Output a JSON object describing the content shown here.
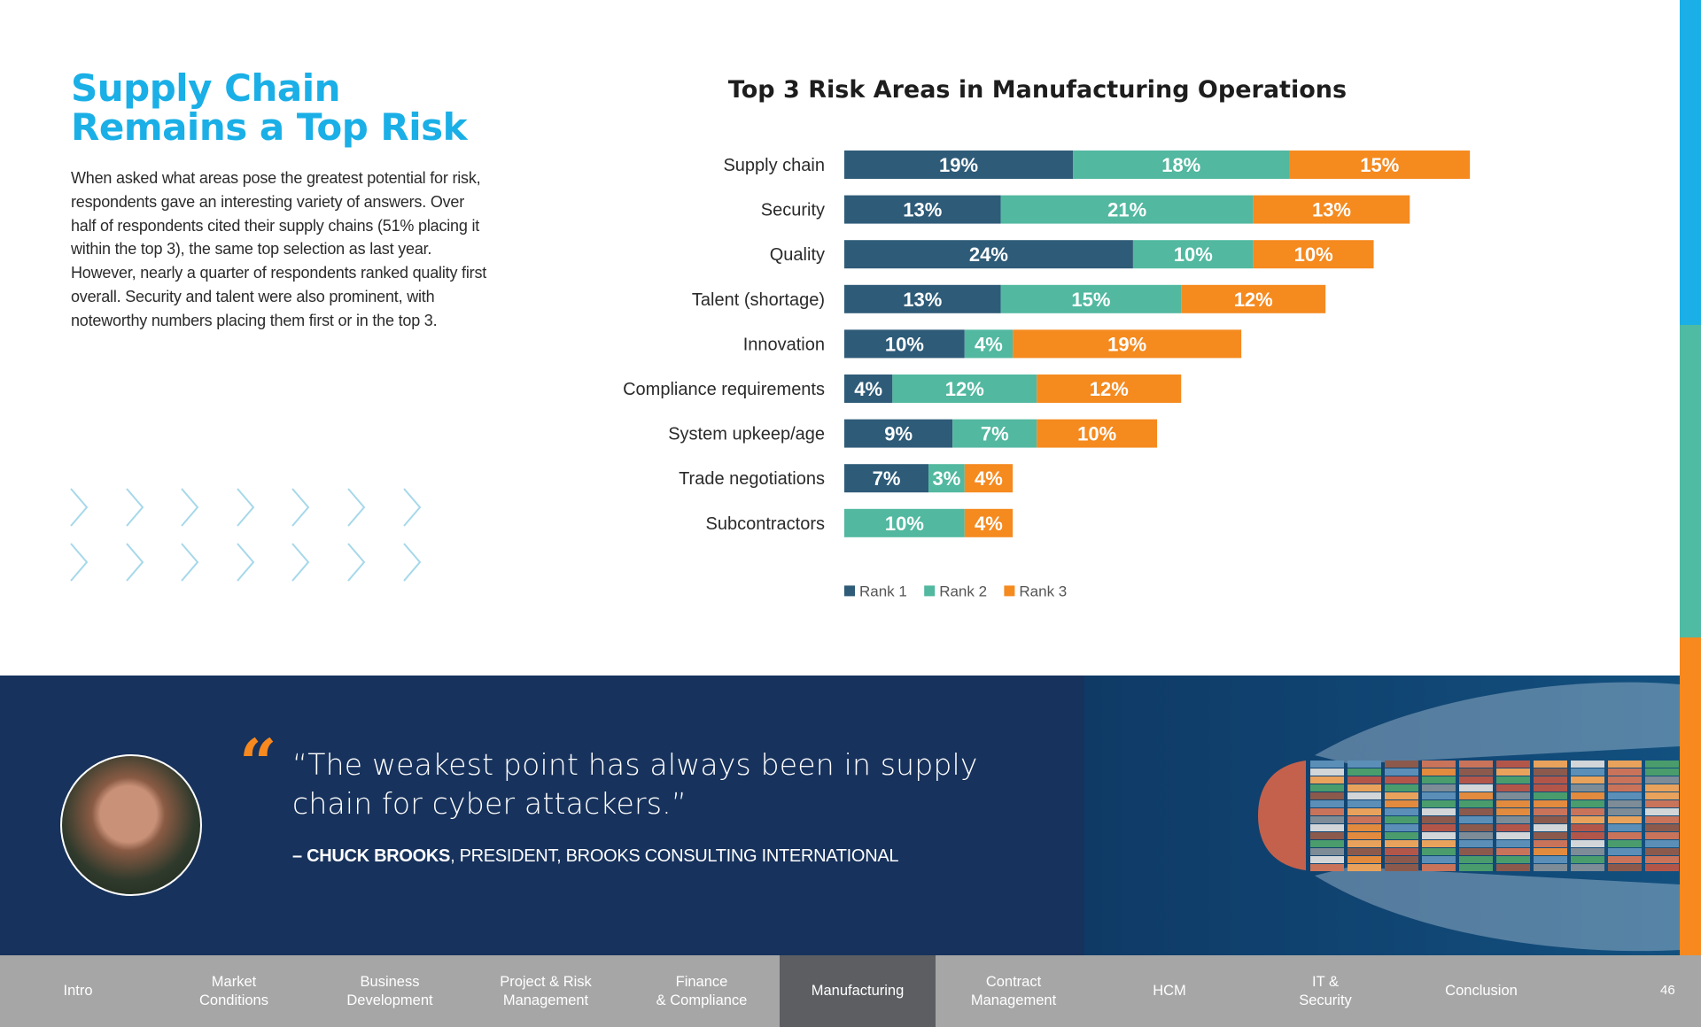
{
  "page": {
    "title_line1": "Supply Chain",
    "title_line2": "Remains a Top Risk",
    "body": "When asked what areas pose the greatest potential for risk, respondents gave an interesting variety of answers. Over half of respondents cited their supply chains (51% placing it within the top 3), the same top selection as last year. However, nearly a quarter of respondents ranked quality first overall. Security and talent were also prominent, with noteworthy numbers placing them first or in the top 3.",
    "chevron_icon": "chevron-right-icon",
    "chevron_color": "#a6d8ea",
    "page_number": "46"
  },
  "colors": {
    "title_blue": "#1aafe6",
    "rank1": "#2e5b78",
    "rank2": "#52b8a0",
    "rank3": "#f58a1f",
    "band_navy": "#17325c",
    "nav_gray": "#a6a6a6",
    "nav_active": "#5c5e62",
    "stripe": [
      "#1aafe6",
      "#4fbba3",
      "#f7891f"
    ]
  },
  "chart_data": {
    "type": "bar",
    "orientation": "horizontal",
    "stacked": true,
    "title": "Top 3 Risk Areas in Manufacturing Operations",
    "xlabel": "",
    "ylabel": "",
    "categories": [
      "Supply chain",
      "Security",
      "Quality",
      "Talent (shortage)",
      "Innovation",
      "Compliance requirements",
      "System upkeep/age",
      "Trade negotiations",
      "Subcontractors"
    ],
    "series": [
      {
        "name": "Rank 1",
        "color": "#2e5b78",
        "values": [
          19,
          13,
          24,
          13,
          10,
          4,
          9,
          7,
          0
        ]
      },
      {
        "name": "Rank 2",
        "color": "#52b8a0",
        "values": [
          18,
          21,
          10,
          15,
          4,
          12,
          7,
          3,
          10
        ]
      },
      {
        "name": "Rank 3",
        "color": "#f58a1f",
        "values": [
          15,
          13,
          10,
          12,
          19,
          12,
          10,
          4,
          4
        ]
      }
    ],
    "value_suffix": "%",
    "data_labels": true,
    "grid": false,
    "legend": "bottom"
  },
  "quote": {
    "mark": "“",
    "text": "“The weakest point has always been in supply chain for cyber attackers.”",
    "dash": "– ",
    "name": "CHUCK BROOKS",
    "role": ",  PRESIDENT, BROOKS CONSULTING INTERNATIONAL"
  },
  "nav": {
    "items": [
      {
        "label": "Intro",
        "active": false
      },
      {
        "label": "Market\nConditions",
        "active": false
      },
      {
        "label": "Business\nDevelopment",
        "active": false
      },
      {
        "label": "Project & Risk\nManagement",
        "active": false
      },
      {
        "label": "Finance\n& Compliance",
        "active": false
      },
      {
        "label": "Manufacturing",
        "active": true
      },
      {
        "label": "Contract\nManagement",
        "active": false
      },
      {
        "label": "HCM",
        "active": false
      },
      {
        "label": "IT &\nSecurity",
        "active": false
      },
      {
        "label": "Conclusion",
        "active": false
      }
    ]
  }
}
